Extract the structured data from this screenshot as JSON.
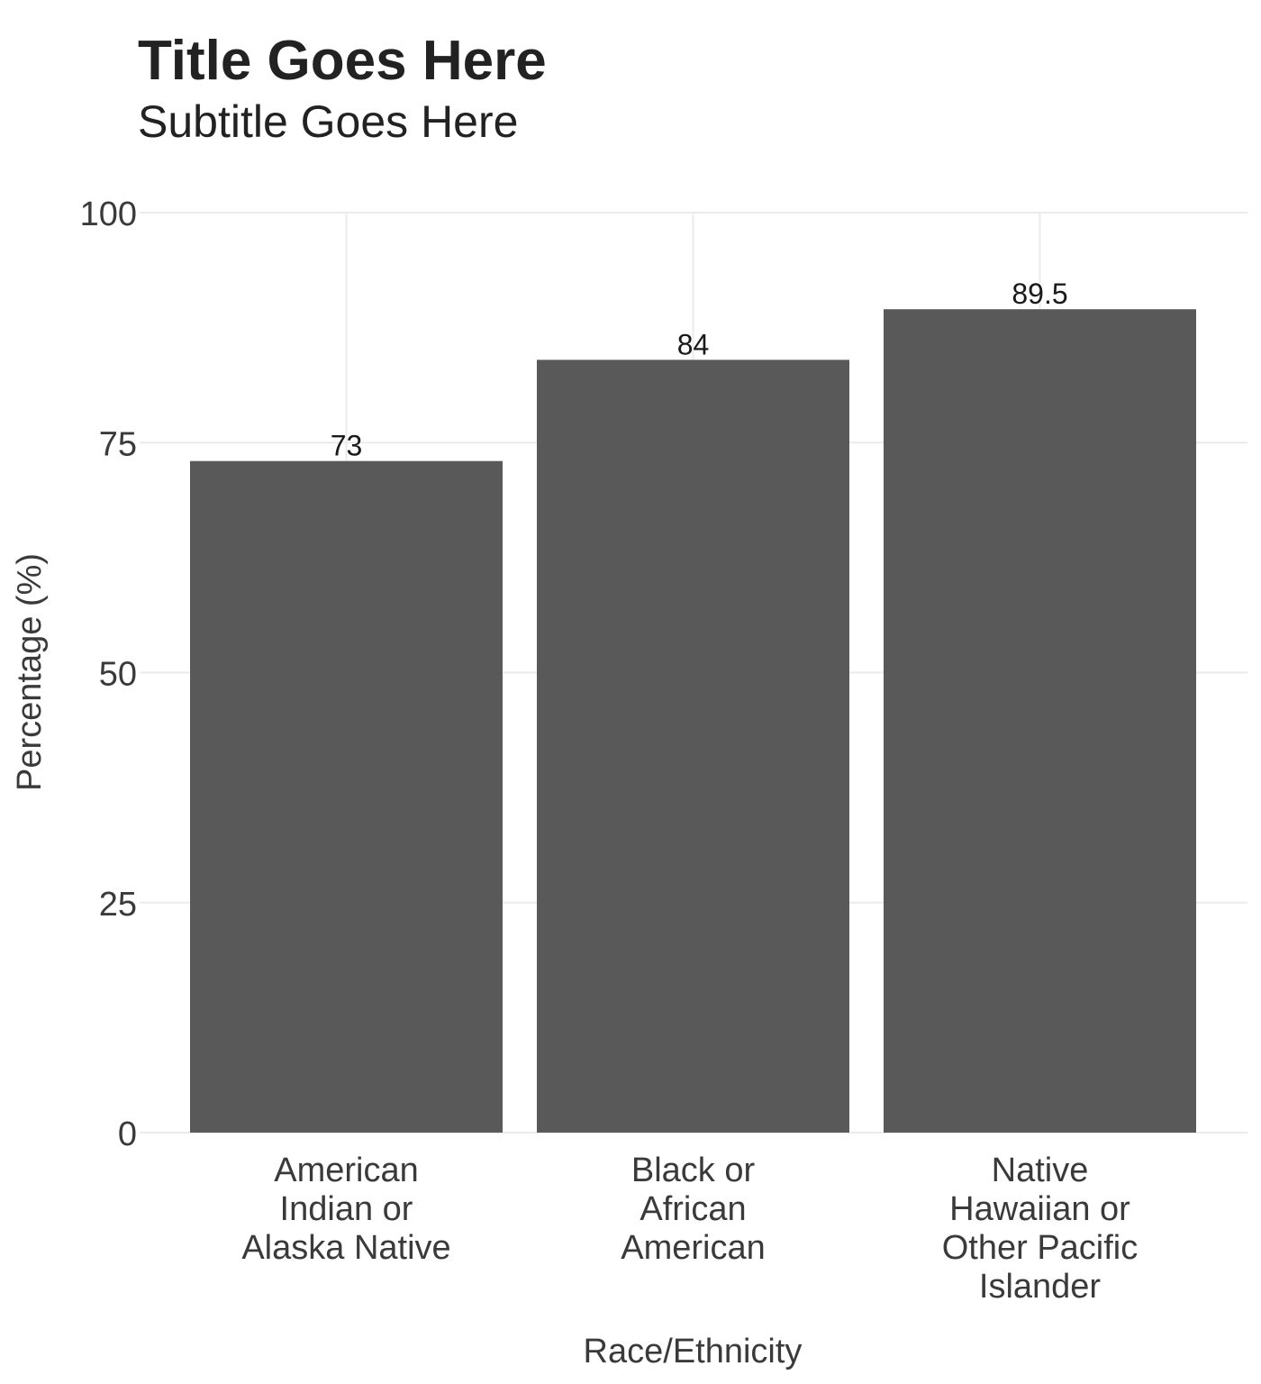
{
  "chart_data": {
    "type": "bar",
    "title": "Title Goes Here",
    "subtitle": "Subtitle Goes Here",
    "xlabel": "Race/Ethnicity",
    "ylabel": "Percentage (%)",
    "categories": [
      [
        "American",
        "Indian or",
        "Alaska Native"
      ],
      [
        "Black or",
        "African",
        "American"
      ],
      [
        "Native",
        "Hawaiian or",
        "Other Pacific",
        "Islander"
      ]
    ],
    "values": [
      73,
      84,
      89.5
    ],
    "data_labels": [
      "73",
      "84",
      "89.5"
    ],
    "ylim": [
      0,
      100
    ],
    "yticks": [
      0,
      25,
      50,
      75,
      100
    ],
    "ytick_labels": [
      "0",
      "25",
      "50",
      "75",
      "100"
    ],
    "grid": true,
    "legend": "none",
    "bar_color": "#595959",
    "grid_color": "#ebebeb",
    "text_color": "#3a3a3a"
  }
}
